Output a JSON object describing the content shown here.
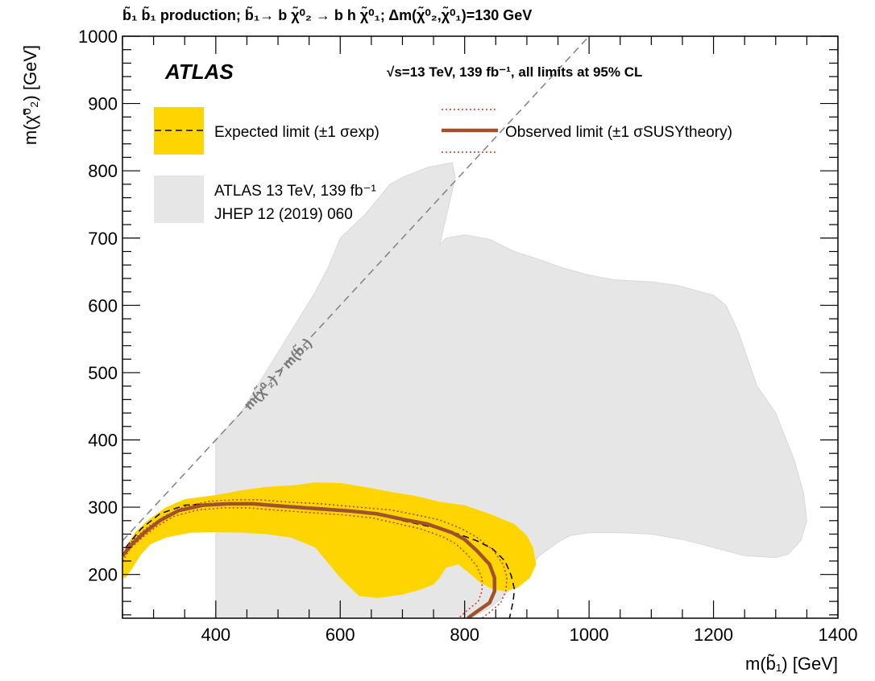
{
  "chart_data": {
    "type": "area",
    "title": "b̃₁ b̃₁ production; b̃₁→ b χ̃⁰₂ → b h χ̃⁰₁; Δm(χ̃⁰₂,χ̃⁰₁)=130 GeV",
    "experiment": "ATLAS",
    "energy_lumi": "√s=13 TeV, 139 fb⁻¹, all limits at 95% CL",
    "xlabel": "m(b̃₁) [GeV]",
    "ylabel": "m(χ̃⁰₂) [GeV]",
    "xlim": [
      250,
      1400
    ],
    "ylim": [
      135,
      1000
    ],
    "x_ticks": [
      400,
      600,
      800,
      1000,
      1200,
      1400
    ],
    "y_ticks": [
      200,
      300,
      400,
      500,
      600,
      700,
      800,
      900,
      1000
    ],
    "diagonal_label": "m(χ̃⁰₂) > m(b̃₁)",
    "legend": {
      "expected": "Expected limit (±1 σexp)",
      "observed": "Observed limit (±1 σSUSYtheory)",
      "previous_line1": "ATLAS 13 TeV, 139 fb⁻¹",
      "previous_line2": "JHEP 12 (2019) 060"
    },
    "colors": {
      "expected_band": "#ffd500",
      "observed": "#a0522d",
      "observed_theory": "#c0392b",
      "previous": "#e6e6e6",
      "diagonal": "#808080"
    },
    "series": [
      {
        "name": "JHEP 12 (2019) 060",
        "kind": "previous_excluded_region",
        "points": [
          [
            400,
            135
          ],
          [
            400,
            400
          ],
          [
            440,
            440
          ],
          [
            480,
            500
          ],
          [
            520,
            560
          ],
          [
            560,
            620
          ],
          [
            580,
            655
          ],
          [
            600,
            700
          ],
          [
            640,
            735
          ],
          [
            680,
            780
          ],
          [
            700,
            790
          ],
          [
            740,
            805
          ],
          [
            780,
            812
          ],
          [
            785,
            790
          ],
          [
            770,
            730
          ],
          [
            760,
            690
          ],
          [
            770,
            700
          ],
          [
            800,
            705
          ],
          [
            840,
            698
          ],
          [
            880,
            680
          ],
          [
            920,
            668
          ],
          [
            960,
            655
          ],
          [
            1000,
            645
          ],
          [
            1040,
            638
          ],
          [
            1100,
            635
          ],
          [
            1140,
            630
          ],
          [
            1180,
            620
          ],
          [
            1200,
            615
          ],
          [
            1220,
            600
          ],
          [
            1240,
            560
          ],
          [
            1270,
            480
          ],
          [
            1300,
            440
          ],
          [
            1330,
            370
          ],
          [
            1345,
            320
          ],
          [
            1350,
            280
          ],
          [
            1340,
            250
          ],
          [
            1320,
            230
          ],
          [
            1300,
            225
          ],
          [
            1250,
            228
          ],
          [
            1200,
            240
          ],
          [
            1150,
            252
          ],
          [
            1100,
            260
          ],
          [
            1050,
            262
          ],
          [
            1000,
            262
          ],
          [
            970,
            258
          ],
          [
            950,
            248
          ],
          [
            920,
            228
          ],
          [
            890,
            195
          ],
          [
            860,
            165
          ],
          [
            840,
            150
          ],
          [
            820,
            140
          ],
          [
            800,
            135
          ]
        ]
      },
      {
        "name": "Expected limit band",
        "kind": "expected_band",
        "points": [
          [
            250,
            225
          ],
          [
            255,
            240
          ],
          [
            270,
            262
          ],
          [
            290,
            280
          ],
          [
            320,
            300
          ],
          [
            350,
            312
          ],
          [
            400,
            318
          ],
          [
            440,
            325
          ],
          [
            480,
            330
          ],
          [
            530,
            333
          ],
          [
            560,
            337
          ],
          [
            600,
            336
          ],
          [
            640,
            330
          ],
          [
            680,
            323
          ],
          [
            720,
            317
          ],
          [
            760,
            308
          ],
          [
            800,
            303
          ],
          [
            840,
            290
          ],
          [
            880,
            275
          ],
          [
            900,
            258
          ],
          [
            910,
            240
          ],
          [
            915,
            215
          ],
          [
            905,
            195
          ],
          [
            885,
            180
          ],
          [
            865,
            175
          ],
          [
            845,
            178
          ],
          [
            825,
            188
          ],
          [
            810,
            200
          ],
          [
            790,
            215
          ],
          [
            770,
            210
          ],
          [
            760,
            195
          ],
          [
            750,
            185
          ],
          [
            730,
            178
          ],
          [
            700,
            170
          ],
          [
            660,
            165
          ],
          [
            630,
            168
          ],
          [
            600,
            195
          ],
          [
            560,
            240
          ],
          [
            520,
            255
          ],
          [
            480,
            260
          ],
          [
            440,
            262
          ],
          [
            400,
            263
          ],
          [
            360,
            262
          ],
          [
            320,
            255
          ],
          [
            295,
            245
          ],
          [
            280,
            230
          ],
          [
            265,
            208
          ],
          [
            255,
            195
          ],
          [
            250,
            195
          ]
        ]
      },
      {
        "name": "Expected limit",
        "kind": "expected",
        "points": [
          [
            255,
            240
          ],
          [
            280,
            268
          ],
          [
            310,
            290
          ],
          [
            350,
            303
          ],
          [
            400,
            306
          ],
          [
            450,
            305
          ],
          [
            500,
            302
          ],
          [
            550,
            300
          ],
          [
            600,
            297
          ],
          [
            650,
            292
          ],
          [
            700,
            280
          ],
          [
            750,
            270
          ],
          [
            790,
            260
          ],
          [
            820,
            250
          ],
          [
            845,
            238
          ],
          [
            865,
            220
          ],
          [
            875,
            198
          ],
          [
            880,
            178
          ],
          [
            878,
            160
          ],
          [
            872,
            135
          ]
        ]
      },
      {
        "name": "Observed limit",
        "kind": "observed",
        "points": [
          [
            250,
            228
          ],
          [
            265,
            245
          ],
          [
            285,
            262
          ],
          [
            310,
            280
          ],
          [
            340,
            295
          ],
          [
            380,
            303
          ],
          [
            420,
            305
          ],
          [
            460,
            305
          ],
          [
            500,
            302
          ],
          [
            560,
            298
          ],
          [
            620,
            294
          ],
          [
            660,
            290
          ],
          [
            700,
            282
          ],
          [
            740,
            275
          ],
          [
            780,
            262
          ],
          [
            800,
            252
          ],
          [
            820,
            235
          ],
          [
            840,
            215
          ],
          [
            848,
            195
          ],
          [
            848,
            175
          ],
          [
            840,
            158
          ],
          [
            820,
            145
          ],
          [
            805,
            135
          ]
        ]
      },
      {
        "name": "Observed limit +1σ theory",
        "kind": "observed_up",
        "points": [
          [
            250,
            236
          ],
          [
            268,
            252
          ],
          [
            290,
            270
          ],
          [
            318,
            287
          ],
          [
            350,
            301
          ],
          [
            390,
            309
          ],
          [
            430,
            311
          ],
          [
            470,
            311
          ],
          [
            510,
            308
          ],
          [
            570,
            305
          ],
          [
            630,
            300
          ],
          [
            680,
            296
          ],
          [
            720,
            289
          ],
          [
            760,
            281
          ],
          [
            795,
            268
          ],
          [
            820,
            255
          ],
          [
            845,
            237
          ],
          [
            862,
            215
          ],
          [
            868,
            195
          ],
          [
            866,
            175
          ],
          [
            858,
            158
          ],
          [
            842,
            145
          ],
          [
            828,
            135
          ]
        ]
      },
      {
        "name": "Observed limit -1σ theory",
        "kind": "observed_down",
        "points": [
          [
            250,
            220
          ],
          [
            262,
            238
          ],
          [
            282,
            255
          ],
          [
            306,
            272
          ],
          [
            334,
            287
          ],
          [
            372,
            296
          ],
          [
            412,
            299
          ],
          [
            452,
            299
          ],
          [
            492,
            296
          ],
          [
            552,
            292
          ],
          [
            612,
            288
          ],
          [
            652,
            284
          ],
          [
            690,
            276
          ],
          [
            728,
            268
          ],
          [
            765,
            256
          ],
          [
            785,
            246
          ],
          [
            804,
            230
          ],
          [
            820,
            212
          ],
          [
            828,
            194
          ],
          [
            828,
            176
          ],
          [
            822,
            160
          ],
          [
            806,
            148
          ],
          [
            790,
            135
          ]
        ]
      }
    ]
  }
}
